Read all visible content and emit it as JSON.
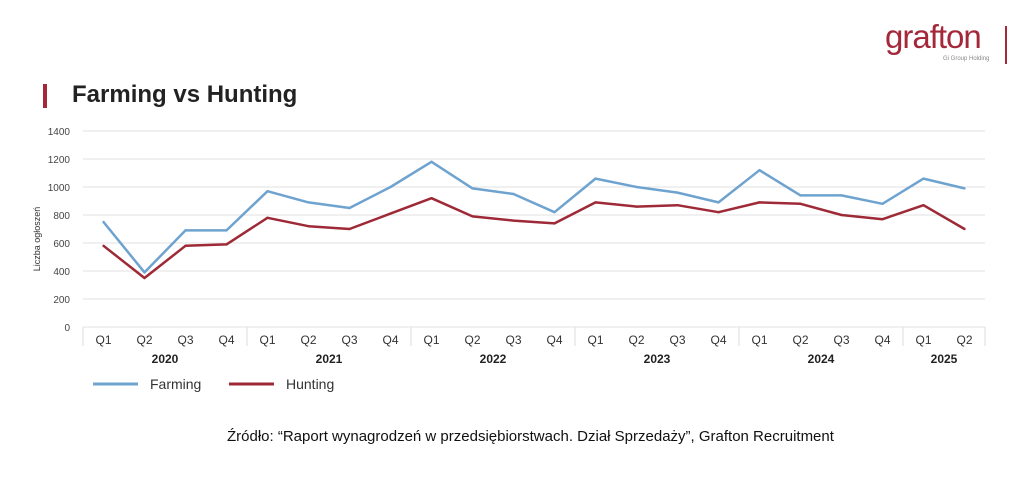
{
  "logo": {
    "name": "grafton",
    "subtitle": "Gi Group Holding"
  },
  "source": "Źródło: “Raport wynagrodzeń w  przedsiębiorstwach. Dział Sprzedaży”, Grafton Recruitment",
  "chart_data": {
    "type": "line",
    "title": "Farming vs Hunting",
    "xlabel": "",
    "ylabel": "Liczba ogłoszeń",
    "ylim": [
      0,
      1400
    ],
    "yticks": [
      0,
      200,
      400,
      600,
      800,
      1000,
      1200,
      1400
    ],
    "grid": true,
    "legend_position": "bottom-left",
    "categories": [
      "Q1",
      "Q2",
      "Q3",
      "Q4",
      "Q1",
      "Q2",
      "Q3",
      "Q4",
      "Q1",
      "Q2",
      "Q3",
      "Q4",
      "Q1",
      "Q2",
      "Q3",
      "Q4",
      "Q1",
      "Q2",
      "Q3",
      "Q4",
      "Q1",
      "Q2"
    ],
    "groups": [
      {
        "label": "2020",
        "count": 4
      },
      {
        "label": "2021",
        "count": 4
      },
      {
        "label": "2022",
        "count": 4
      },
      {
        "label": "2023",
        "count": 4
      },
      {
        "label": "2024",
        "count": 4
      },
      {
        "label": "2025",
        "count": 2
      }
    ],
    "series": [
      {
        "name": "Farming",
        "color": "#6fa3cf",
        "values": [
          750,
          390,
          690,
          690,
          970,
          890,
          850,
          1000,
          1180,
          990,
          950,
          820,
          1060,
          1000,
          960,
          890,
          1120,
          940,
          940,
          880,
          1060,
          990
        ]
      },
      {
        "name": "Hunting",
        "color": "#9e2a37",
        "values": [
          580,
          350,
          580,
          590,
          780,
          720,
          700,
          810,
          920,
          790,
          760,
          740,
          890,
          860,
          870,
          820,
          890,
          880,
          800,
          770,
          870,
          700
        ]
      }
    ]
  }
}
